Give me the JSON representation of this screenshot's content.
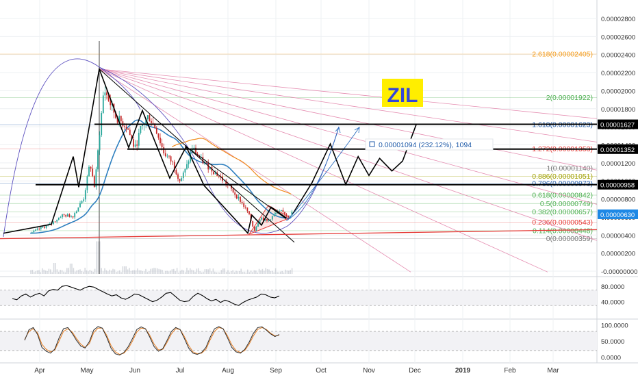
{
  "symbol_badge": "ZIL",
  "colors": {
    "price_up": "#26a69a",
    "price_down": "#c62828",
    "axis_text": "#333333",
    "grid": "#eef0f3",
    "badge_bg": "#ffee00",
    "badge_text": "#3346d8",
    "fib_orange": "#f59c1b",
    "fib_green": "#4caf50",
    "fib_blue": "#1e5aa8",
    "fib_red": "#e53935",
    "fib_gray": "#777777",
    "fib_olive": "#a0a000",
    "rsi_line": "#000000",
    "stoch_k": "#2b2b2b",
    "stoch_d": "#e67e22",
    "ma_fast": "#2e7fbf",
    "ma_slow": "#f08c1c"
  },
  "chart_data": [
    {
      "type": "candlestick",
      "panel": "price",
      "price_scale": {
        "ticks": [
          "0.00002800",
          "0.00002600",
          "0.00002400",
          "0.00002200",
          "0.00002000",
          "0.00001800",
          "0.00001600",
          "0.00001400",
          "0.00001200",
          "0.00001000",
          "0.00000800",
          "0.00000600",
          "0.00000400",
          "0.00000200",
          "-0.00000000"
        ],
        "tick_values": [
          2.8e-05,
          2.6e-05,
          2.4e-05,
          2.2e-05,
          2e-05,
          1.8e-05,
          1.6e-05,
          1.4e-05,
          1.2e-05,
          1e-05,
          8e-06,
          6e-06,
          4e-06,
          2e-06,
          0.0
        ],
        "ylim": [
          -2e-07,
          2.92e-05
        ]
      },
      "time_axis": [
        "Apr",
        "May",
        "Jun",
        "Jul",
        "Aug",
        "Sep",
        "Oct",
        "Nov",
        "Dec",
        "2019",
        "Feb",
        "Mar"
      ],
      "price_labels": [
        {
          "text": "0.00001627",
          "value": 1.627e-05,
          "style": "black"
        },
        {
          "text": "0.00001352",
          "value": 1.352e-05,
          "style": "black"
        },
        {
          "text": "0.00000958",
          "value": 9.58e-06,
          "style": "black"
        },
        {
          "text": "0.00000630",
          "value": 6.3e-06,
          "style": "blue"
        }
      ],
      "horizontal_levels": [
        1.627e-05,
        1.352e-05,
        9.58e-06
      ],
      "fibonacci_levels": [
        {
          "label": "2.618(0.00002405)",
          "ratio": 2.618,
          "value": 2.405e-05,
          "color_key": "fib_orange"
        },
        {
          "label": "2(0.00001922)",
          "ratio": 2,
          "value": 1.922e-05,
          "color_key": "fib_green"
        },
        {
          "label": "1.618(0.00001623)",
          "ratio": 1.618,
          "value": 1.623e-05,
          "color_key": "fib_blue"
        },
        {
          "label": "1.272(0.00001353)",
          "ratio": 1.272,
          "value": 1.353e-05,
          "color_key": "fib_red"
        },
        {
          "label": "1(0.00001140)",
          "ratio": 1,
          "value": 1.14e-05,
          "color_key": "fib_gray"
        },
        {
          "label": "0.886(0.00001051)",
          "ratio": 0.886,
          "value": 1.051e-05,
          "color_key": "fib_olive"
        },
        {
          "label": "0.786(0.00000973)",
          "ratio": 0.786,
          "value": 9.73e-06,
          "color_key": "fib_blue"
        },
        {
          "label": "0.618(0.00000842)",
          "ratio": 0.618,
          "value": 8.42e-06,
          "color_key": "fib_green"
        },
        {
          "label": "0.5(0.00000749)",
          "ratio": 0.5,
          "value": 7.49e-06,
          "color_key": "fib_green"
        },
        {
          "label": "0.382(0.00000657)",
          "ratio": 0.382,
          "value": 6.57e-06,
          "color_key": "fib_green"
        },
        {
          "label": "0.236(0.00000543)",
          "ratio": 0.236,
          "value": 5.43e-06,
          "color_key": "fib_red"
        },
        {
          "label": "0.114(0.00000448)",
          "ratio": 0.114,
          "value": 4.48e-06,
          "color_key": "fib_green"
        },
        {
          "label": "0(0.00000359)",
          "ratio": 0,
          "value": 3.59e-06,
          "color_key": "fib_gray"
        }
      ],
      "measure_annotation": "0.00001094 (232.12%), 1094",
      "close_path": [
        [
          "Mar 26",
          4.2e-06
        ],
        [
          "Apr 1",
          4.7e-06
        ],
        [
          "Apr 8",
          5.2e-06
        ],
        [
          "Apr 15",
          6.2e-06
        ],
        [
          "Apr 22",
          6.1e-06
        ],
        [
          "Apr 29",
          8.1e-06
        ],
        [
          "May 3",
          1.2e-05
        ],
        [
          "May 6",
          9.2e-06
        ],
        [
          "May 9",
          1.5e-05
        ],
        [
          "May 12",
          2.02e-05
        ],
        [
          "May 15",
          1.9e-05
        ],
        [
          "May 20",
          1.7e-05
        ],
        [
          "May 27",
          1.6e-05
        ],
        [
          "Jun 1",
          1.35e-05
        ],
        [
          "Jun 5",
          1.58e-05
        ],
        [
          "Jun 10",
          1.72e-05
        ],
        [
          "Jun 15",
          1.58e-05
        ],
        [
          "Jun 20",
          1.32e-05
        ],
        [
          "Jun 26",
          1.2e-05
        ],
        [
          "Jul 1",
          1e-05
        ],
        [
          "Jul 5",
          1.14e-05
        ],
        [
          "Jul 9",
          1.37e-05
        ],
        [
          "Jul 14",
          1.24e-05
        ],
        [
          "Jul 20",
          1.15e-05
        ],
        [
          "Jul 27",
          1.04e-05
        ],
        [
          "Aug 3",
          9.1e-06
        ],
        [
          "Aug 9",
          7.8e-06
        ],
        [
          "Aug 14",
          6.5e-06
        ],
        [
          "Aug 18",
          4.5e-06
        ],
        [
          "Aug 22",
          6e-06
        ],
        [
          "Aug 26",
          5.5e-06
        ],
        [
          "Sep 1",
          6.4e-06
        ],
        [
          "Sep 5",
          6.6e-06
        ],
        [
          "Sep 9",
          6.1e-06
        ],
        [
          "Sep 12",
          6.5e-06
        ]
      ],
      "projection_path": [
        [
          "Sep 12",
          6.3e-06
        ],
        [
          "Sep 25",
          9.8e-06
        ],
        [
          "Oct 7",
          1.41e-05
        ],
        [
          "Oct 17",
          9.6e-06
        ],
        [
          "Oct 25",
          1.27e-05
        ],
        [
          "Nov 1",
          1.06e-05
        ],
        [
          "Nov 8",
          1.25e-05
        ],
        [
          "Nov 16",
          1.11e-05
        ],
        [
          "Nov 23",
          1.22e-05
        ],
        [
          "Dec 2",
          1.63e-05
        ]
      ]
    },
    {
      "type": "line",
      "panel": "rsi",
      "y_ticks": [
        "80.0000",
        "40.0000"
      ],
      "y_tick_values": [
        80,
        40
      ],
      "ylim": [
        0,
        100
      ],
      "series": [
        {
          "values": [
            48,
            45,
            55,
            60,
            52,
            58,
            62,
            55,
            68,
            72,
            70,
            80,
            82,
            78,
            74,
            70,
            76,
            80,
            78,
            72,
            66,
            60,
            55,
            58,
            50,
            46,
            52,
            60,
            58,
            52,
            46,
            40,
            44,
            52,
            62,
            64,
            54,
            44,
            40,
            42,
            54,
            62,
            56,
            48,
            42,
            46,
            38,
            44,
            40,
            34,
            30,
            38,
            44,
            48,
            52,
            60,
            58,
            52,
            50,
            55
          ]
        }
      ]
    },
    {
      "type": "line",
      "panel": "stochastic",
      "y_ticks": [
        "100.0000",
        "50.0000",
        "0.0000"
      ],
      "y_tick_values": [
        100,
        50,
        0
      ],
      "ylim": [
        -12,
        112
      ],
      "series": [
        {
          "values": [
            52,
            85,
            92,
            70,
            30,
            18,
            12,
            25,
            60,
            88,
            92,
            74,
            52,
            34,
            28,
            48,
            84,
            95,
            90,
            62,
            28,
            10,
            6,
            14,
            32,
            58,
            86,
            94,
            88,
            62,
            32,
            18,
            26,
            52,
            80,
            92,
            86,
            58,
            28,
            12,
            8,
            14,
            30,
            62,
            88,
            95,
            88,
            60,
            30,
            16,
            12,
            24,
            46,
            74,
            92,
            94,
            84,
            72,
            64,
            70
          ]
        },
        {
          "values": [
            55,
            80,
            88,
            75,
            40,
            24,
            16,
            22,
            50,
            80,
            88,
            78,
            58,
            40,
            30,
            42,
            76,
            90,
            90,
            68,
            36,
            16,
            8,
            12,
            26,
            50,
            78,
            90,
            88,
            68,
            40,
            22,
            24,
            46,
            72,
            88,
            86,
            64,
            36,
            16,
            10,
            12,
            24,
            54,
            80,
            92,
            88,
            66,
            38,
            20,
            14,
            20,
            40,
            66,
            86,
            92,
            86,
            74,
            66,
            68
          ]
        }
      ]
    }
  ]
}
